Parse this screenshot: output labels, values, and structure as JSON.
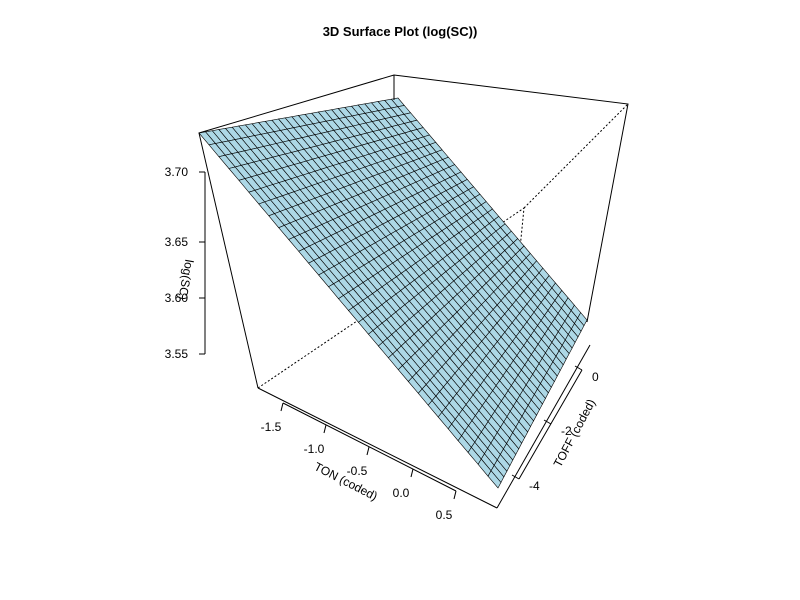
{
  "chart_data": {
    "type": "surface",
    "title": "3D Surface Plot (log(SC))",
    "xlabel": "TON (coded)",
    "ylabel": "TOFF (coded)",
    "zlabel": "log(SC)",
    "x_ticks": [
      "-1.5",
      "-1.0",
      "-0.5",
      "0.0",
      "0.5"
    ],
    "y_ticks": [
      "-4",
      "-2",
      "0"
    ],
    "z_ticks": [
      "3.55",
      "3.60",
      "3.65",
      "3.70"
    ],
    "surface_color": "#add8e6",
    "grid_color": "#000000"
  }
}
